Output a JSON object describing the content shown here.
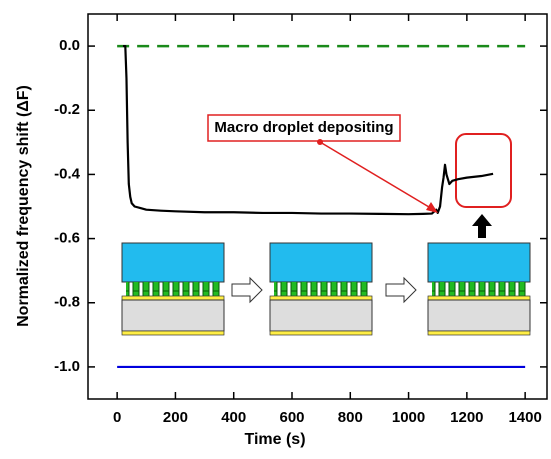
{
  "chart_data": {
    "type": "line",
    "xlabel": "Time (s)",
    "ylabel": "Normalized frequency shift (ΔF)",
    "annotation": "Macro droplet depositing",
    "xlim": [
      -100,
      1475
    ],
    "ylim": [
      -1.1,
      0.1
    ],
    "xticks": [
      0,
      200,
      400,
      600,
      800,
      1000,
      1200,
      1400
    ],
    "yticks": [
      {
        "value": -1,
        "label": "-1.0"
      },
      -0.8,
      -0.6,
      -0.4,
      -0.2,
      {
        "value": 0,
        "label": "0.0"
      }
    ],
    "series": [
      {
        "color": "#1a8a1a",
        "dash": true,
        "x": [
          0,
          1400
        ],
        "values": [
          0,
          0
        ]
      },
      {
        "color": "#0000dd",
        "dash": false,
        "x": [
          0,
          1400
        ],
        "values": [
          -1,
          -1
        ]
      },
      {
        "color": "#000000",
        "dash": false,
        "x": [
          20,
          28,
          32,
          36,
          40,
          45,
          50,
          60,
          80,
          100,
          150,
          200,
          300,
          400,
          500,
          600,
          700,
          800,
          900,
          1000,
          1050,
          1080,
          1095,
          1100,
          1108,
          1115,
          1120,
          1125,
          1130,
          1140,
          1150,
          1170,
          1200,
          1250,
          1290
        ],
        "values": [
          0,
          0,
          -0.1,
          -0.3,
          -0.43,
          -0.47,
          -0.49,
          -0.5,
          -0.505,
          -0.51,
          -0.513,
          -0.515,
          -0.518,
          -0.518,
          -0.52,
          -0.52,
          -0.522,
          -0.522,
          -0.523,
          -0.524,
          -0.523,
          -0.522,
          -0.51,
          -0.52,
          -0.5,
          -0.44,
          -0.41,
          -0.37,
          -0.4,
          -0.43,
          -0.42,
          -0.415,
          -0.41,
          -0.405,
          -0.398
        ]
      }
    ]
  }
}
